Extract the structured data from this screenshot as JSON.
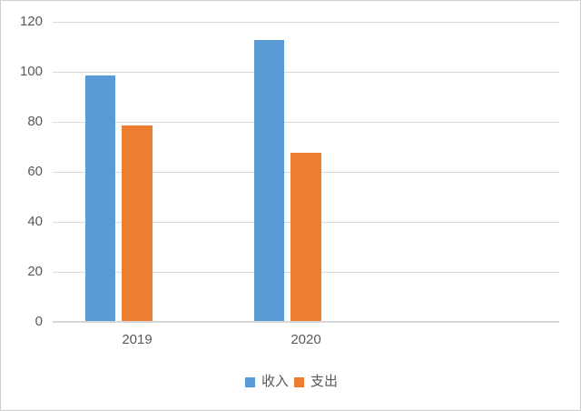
{
  "chart_data": {
    "type": "bar",
    "title": "",
    "xlabel": "",
    "ylabel": "",
    "categories": [
      "2019",
      "2020"
    ],
    "series": [
      {
        "name": "收入",
        "color": "#5B9BD5",
        "values": [
          98.3,
          112.5
        ]
      },
      {
        "name": "支出",
        "color": "#ED7D31",
        "values": [
          78.2,
          67.2
        ]
      }
    ],
    "ylim": [
      0,
      120
    ],
    "ytick_step": 20,
    "ytick_labels": [
      "0",
      "20",
      "40",
      "60",
      "80",
      "100",
      "120"
    ],
    "grid": true,
    "legend_position": "bottom-center",
    "colors": {
      "gridline": "#d9d9d9",
      "axis_line": "#d6d6d6",
      "tick_text": "#595959",
      "frame_border": "#cfcfcf",
      "background": "#ffffff"
    }
  }
}
